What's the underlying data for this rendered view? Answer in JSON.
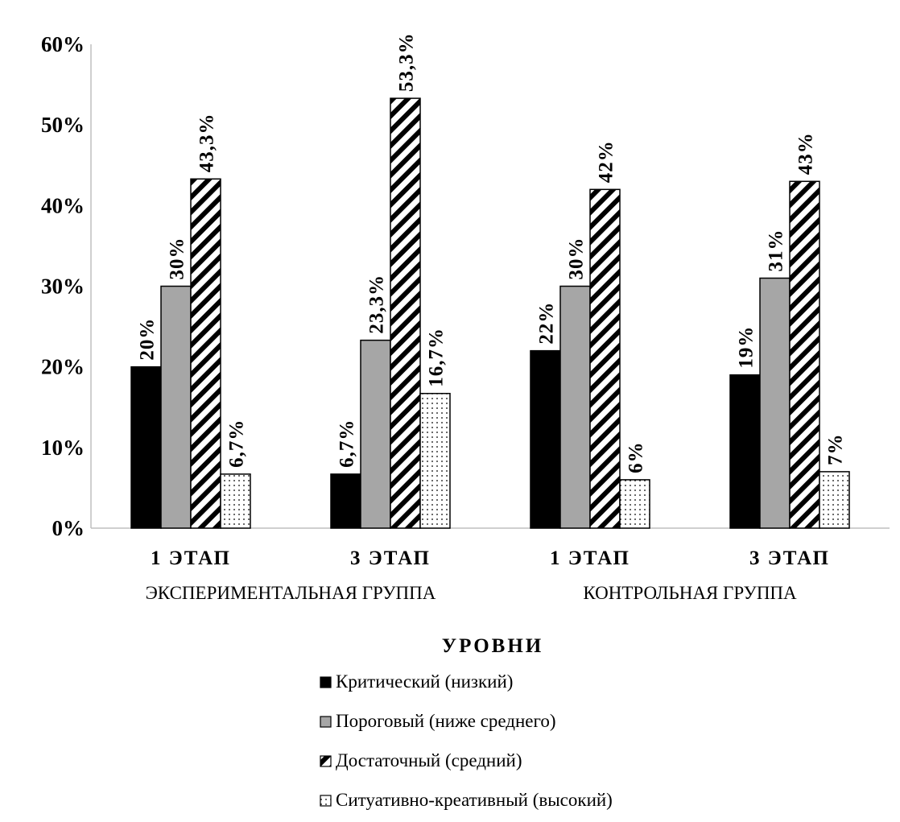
{
  "chart_data": {
    "type": "bar",
    "categories": [
      "1 ЭТАП",
      "3 ЭТАП",
      "1 ЭТАП",
      "3 ЭТАП"
    ],
    "groups": [
      "ЭКСПЕРИМЕНТАЛЬНАЯ ГРУППА",
      "КОНТРОЛЬНАЯ ГРУППА"
    ],
    "series": [
      {
        "name": "Критический (низкий)",
        "values": [
          20,
          6.7,
          22,
          19
        ],
        "labels": [
          "20%",
          "6,7%",
          "22%",
          "19%"
        ],
        "fill": "solid",
        "color": "#000000"
      },
      {
        "name": "Пороговый (ниже среднего)",
        "values": [
          30,
          23.3,
          30,
          31
        ],
        "labels": [
          "30%",
          "23,3%",
          "30%",
          "31%"
        ],
        "fill": "solid",
        "color": "#a6a6a6"
      },
      {
        "name": "Достаточный (средний)",
        "values": [
          43.3,
          53.3,
          42,
          43
        ],
        "labels": [
          "43,3%",
          "53,3%",
          "42%",
          "43%"
        ],
        "fill": "diagonal-hatch",
        "color": "#000000"
      },
      {
        "name": "Ситуативно-креативный (высокий)",
        "values": [
          6.7,
          16.7,
          6,
          7
        ],
        "labels": [
          "6,7%",
          "16,7%",
          "6%",
          "7%"
        ],
        "fill": "dotted",
        "color": "#000000"
      }
    ],
    "y_ticks": [
      "0%",
      "10%",
      "20%",
      "30%",
      "40%",
      "50%",
      "60%"
    ],
    "ylim": [
      0,
      60
    ],
    "legend_title": "УРОВНИ",
    "legend_position": "bottom",
    "grid": false
  }
}
